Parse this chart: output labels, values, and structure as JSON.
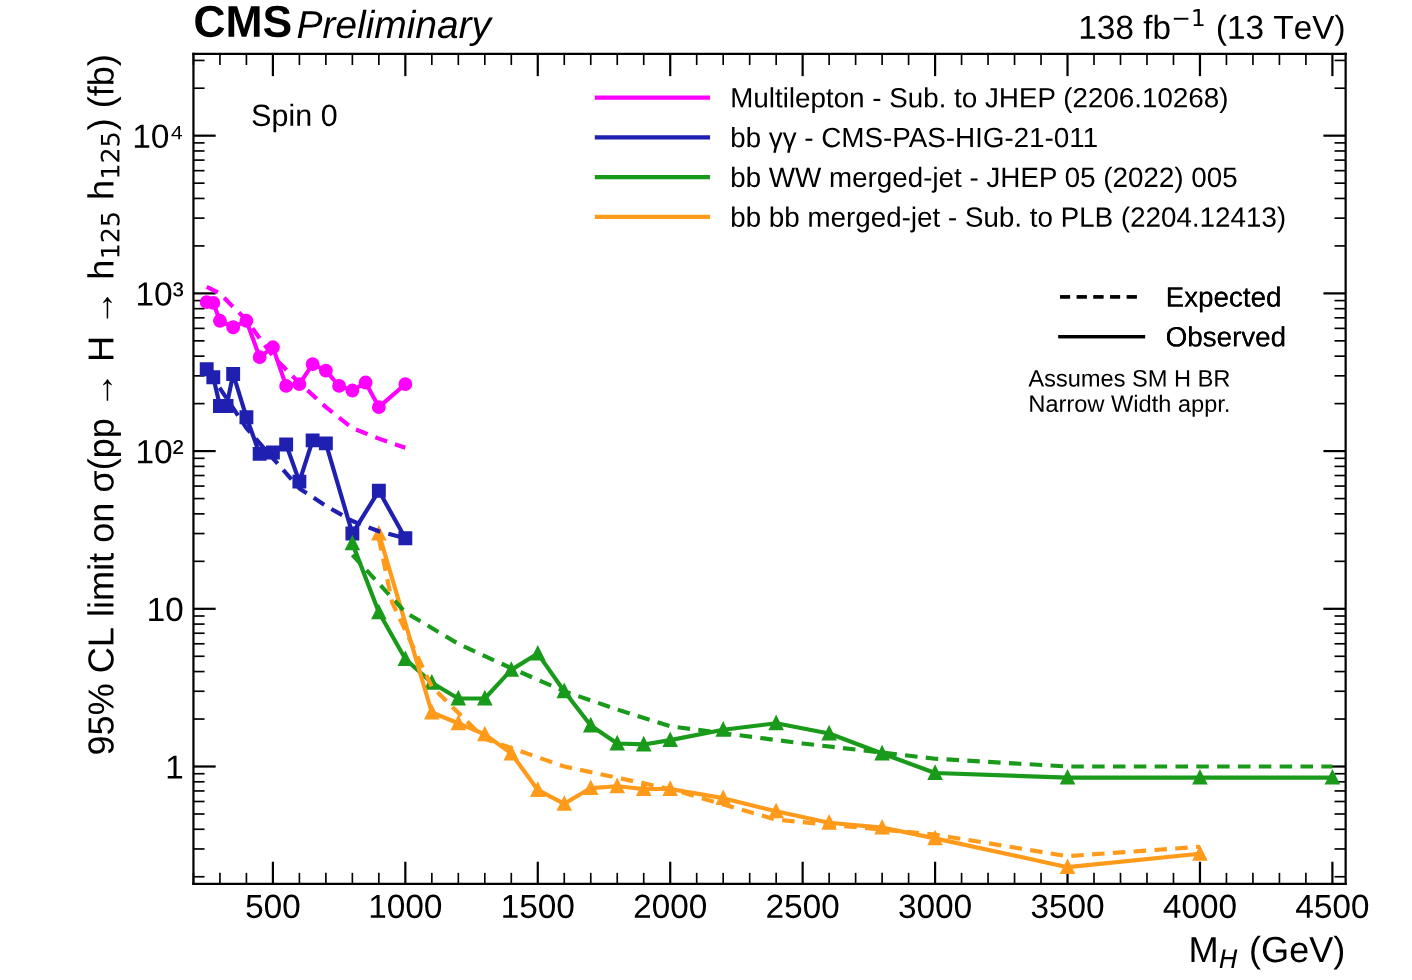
{
  "chart_data": {
    "type": "line",
    "title": "CMS",
    "subtitle": "Preliminary",
    "xlabel": "M$_{H}$ (GeV)",
    "ylabel": "95% CL limit on σ(pp → H → h$_{125}$ h$_{125}$) (fb)",
    "annotations": [
      "138 fb$^{−1}$ (13 TeV)",
      "Spin 0",
      "Expected",
      "Observed",
      "Assumes SM H BR\nNarrow Width appr."
    ],
    "log": "y",
    "xlim": [
      200,
      4550
    ],
    "ylim": [
      0.18,
      33000
    ],
    "xticks": [
      500,
      1000,
      1500,
      2000,
      2500,
      3000,
      3500,
      4000,
      4500
    ],
    "yticks": [
      1,
      10,
      {
        "value": 100,
        "label": "10²"
      },
      {
        "value": 1000,
        "label": "10³"
      },
      {
        "value": 10000,
        "label": "10⁴"
      }
    ],
    "grid": false,
    "legend": "top right",
    "series": [
      {
        "name": "Multilepton - Sub. to JHEP (2206.10268)",
        "color": "#ff00ff",
        "marker": "circle",
        "line_style": "solid",
        "x": [
          250,
          275,
          300,
          350,
          400,
          450,
          500,
          550,
          600,
          650,
          700,
          750,
          800,
          850,
          900,
          1000
        ],
        "values": [
          880,
          870,
          670,
          610,
          670,
          394,
          455,
          259,
          266,
          356,
          324,
          259,
          242,
          272,
          190,
          266
        ]
      },
      {
        "name": "bb γγ - CMS-PAS-HIG-21-011",
        "color": "#1f1fb0",
        "marker": "square",
        "line_style": "solid",
        "x": [
          250,
          275,
          300,
          325,
          350,
          400,
          450,
          500,
          550,
          600,
          650,
          700,
          800,
          900,
          1000
        ],
        "values": [
          330,
          294,
          193,
          193,
          308,
          164,
          96,
          98,
          110,
          64,
          117,
          112,
          30,
          56,
          28
        ]
      },
      {
        "name": "bb WW merged-jet - JHEP 05 (2022) 005",
        "color": "#1a9a1a",
        "marker": "triangle",
        "line_style": "solid",
        "x": [
          800,
          900,
          1000,
          1100,
          1200,
          1300,
          1400,
          1500,
          1600,
          1700,
          1800,
          1900,
          2000,
          2200,
          2400,
          2600,
          2800,
          3000,
          3500,
          4000,
          4500
        ],
        "values": [
          26,
          9.5,
          4.8,
          3.4,
          2.7,
          2.7,
          4.1,
          5.2,
          3.0,
          1.82,
          1.4,
          1.38,
          1.47,
          1.71,
          1.88,
          1.62,
          1.21,
          0.91,
          0.85,
          0.85,
          0.85
        ]
      },
      {
        "name": "bb bb merged-jet - Sub. to PLB (2204.12413)",
        "color": "#ff9a1a",
        "marker": "triangle",
        "line_style": "solid",
        "x": [
          900,
          1100,
          1200,
          1300,
          1400,
          1500,
          1600,
          1700,
          1800,
          1900,
          2000,
          2200,
          2400,
          2600,
          2800,
          3000,
          3500,
          4000
        ],
        "values": [
          30,
          2.2,
          1.88,
          1.6,
          1.21,
          0.71,
          0.58,
          0.73,
          0.75,
          0.72,
          0.72,
          0.63,
          0.52,
          0.44,
          0.41,
          0.35,
          0.23,
          0.28
        ]
      },
      {
        "color": "#ff00ff",
        "marker": "none",
        "line_style": "dashed",
        "x": [
          250,
          300,
          350,
          400,
          450,
          500,
          600,
          700,
          800,
          900,
          1000
        ],
        "values": [
          1100,
          1000,
          820,
          680,
          520,
          400,
          270,
          190,
          140,
          120,
          105
        ]
      },
      {
        "color": "#1f1fb0",
        "marker": "none",
        "line_style": "dashed",
        "x": [
          250,
          300,
          400,
          500,
          600,
          700,
          800,
          900,
          1000
        ],
        "values": [
          320,
          250,
          140,
          90,
          58,
          45,
          36,
          31,
          28
        ]
      },
      {
        "color": "#1a9a1a",
        "marker": "none",
        "line_style": "dashed",
        "x": [
          800,
          1000,
          1200,
          1400,
          1600,
          1800,
          2000,
          2500,
          3000,
          3500,
          4000,
          4500
        ],
        "values": [
          22,
          9.5,
          6,
          4.2,
          3.0,
          2.3,
          1.8,
          1.4,
          1.12,
          1.0,
          1.0,
          1.0
        ]
      },
      {
        "color": "#ff9a1a",
        "marker": "none",
        "line_style": "dashed",
        "x": [
          900,
          950,
          1100,
          1300,
          1600,
          2000,
          2400,
          3000,
          3500,
          4000
        ],
        "values": [
          28,
          11,
          3.2,
          1.5,
          1.0,
          0.72,
          0.46,
          0.37,
          0.27,
          0.31
        ]
      }
    ]
  }
}
